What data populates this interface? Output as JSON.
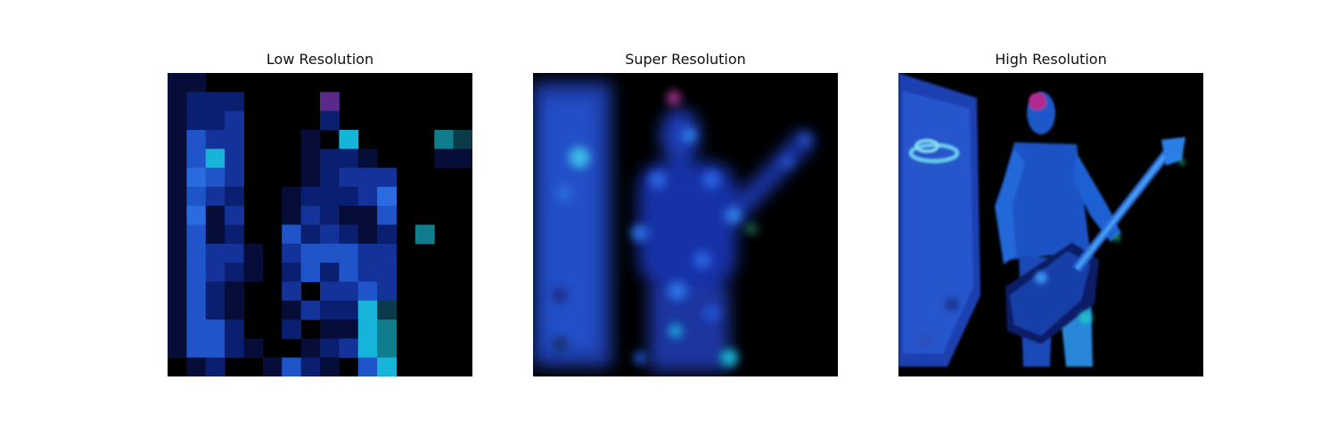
{
  "figure": {
    "panels": [
      {
        "title": "Low Resolution",
        "image": "pixelated-guitarist"
      },
      {
        "title": "Super Resolution",
        "image": "blurred-guitarist"
      },
      {
        "title": "High Resolution",
        "image": "detailed-guitarist"
      }
    ]
  },
  "colors": {
    "background": "#000000",
    "deep_blue": "#0a1a6b",
    "mid_blue": "#1a3fb5",
    "bright_blue": "#2a6be0",
    "cyan": "#12b3d6",
    "magenta": "#6a2a8a"
  }
}
